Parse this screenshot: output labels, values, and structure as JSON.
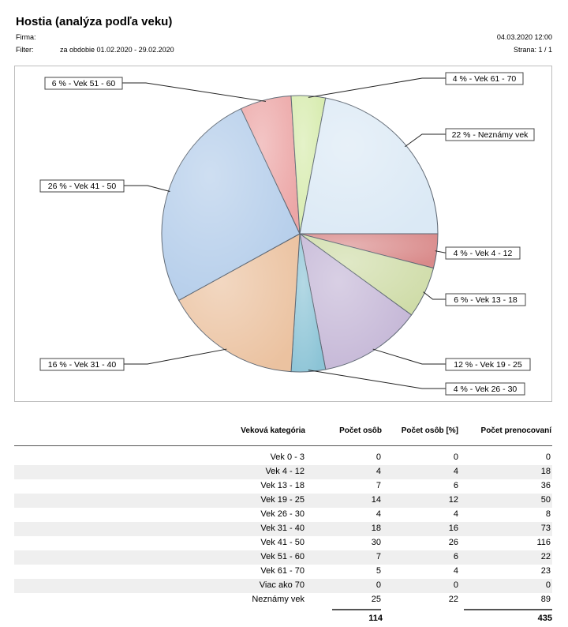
{
  "report": {
    "title": "Hostia (analýza podľa veku)",
    "firma_label": "Firma:",
    "filter_label": "Filter:",
    "filter_value": "za obdobie 01.02.2020 - 29.02.2020",
    "date": "04.03.2020 12:00",
    "page": "Strana: 1 / 1"
  },
  "chart_data": {
    "type": "pie",
    "start_angle_deg": 0,
    "direction": "clockwise",
    "slices": [
      {
        "category": "Vek 4 - 12",
        "value": 4,
        "label": "4 % - Vek 4 - 12",
        "color": "#d98a8a"
      },
      {
        "category": "Vek 13 - 18",
        "value": 6,
        "label": "6 % - Vek 13 - 18",
        "color": "#cfdca8"
      },
      {
        "category": "Vek 19 - 25",
        "value": 12,
        "label": "12 % - Vek 19 - 25",
        "color": "#c4b6d6"
      },
      {
        "category": "Vek 26 - 30",
        "value": 4,
        "label": "4 % - Vek 26 - 30",
        "color": "#8cc4d6"
      },
      {
        "category": "Vek 31 - 40",
        "value": 16,
        "label": "16 % - Vek 31 - 40",
        "color": "#ebc2a0"
      },
      {
        "category": "Vek 41 - 50",
        "value": 26,
        "label": "26 % - Vek 41 - 50",
        "color": "#b4cdea"
      },
      {
        "category": "Vek 51 - 60",
        "value": 6,
        "label": "6 % - Vek 51 - 60",
        "color": "#eca6a6"
      },
      {
        "category": "Vek 61 - 70",
        "value": 4,
        "label": "4 % - Vek 61 - 70",
        "color": "#d6ebac"
      },
      {
        "category": "Neznámy vek",
        "value": 22,
        "label": "22 % - Neznámy vek",
        "color": "#dbe9f5"
      }
    ]
  },
  "table": {
    "headers": [
      "Veková kategória",
      "Počet osôb",
      "Počet osôb [%]",
      "Počet prenocovaní"
    ],
    "rows": [
      [
        "Vek 0 - 3",
        "0",
        "0",
        "0"
      ],
      [
        "Vek 4 - 12",
        "4",
        "4",
        "18"
      ],
      [
        "Vek 13 - 18",
        "7",
        "6",
        "36"
      ],
      [
        "Vek 19 - 25",
        "14",
        "12",
        "50"
      ],
      [
        "Vek 26 - 30",
        "4",
        "4",
        "8"
      ],
      [
        "Vek 31 - 40",
        "18",
        "16",
        "73"
      ],
      [
        "Vek 41 - 50",
        "30",
        "26",
        "116"
      ],
      [
        "Vek 51 - 60",
        "7",
        "6",
        "22"
      ],
      [
        "Vek 61 - 70",
        "5",
        "4",
        "23"
      ],
      [
        "Viac ako 70",
        "0",
        "0",
        "0"
      ],
      [
        "Neznámy vek",
        "25",
        "22",
        "89"
      ]
    ],
    "totals": {
      "persons": "114",
      "nights": "435"
    }
  }
}
